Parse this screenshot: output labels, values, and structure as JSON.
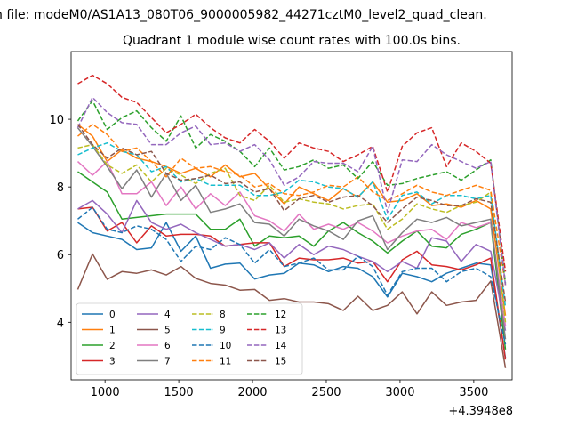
{
  "figure": {
    "suptitle": "n file: modeM0/AS1A13_080T06_9000005982_44271cztM0_level2_quad_clean.",
    "title": "Quadrant 1 module wise count rates with 100.0s bins.",
    "offset_label": "+4.3948e8"
  },
  "chart_data": {
    "type": "line",
    "title": "Quadrant 1 module wise count rates with 100.0s bins.",
    "xlabel": "",
    "ylabel": "",
    "x_offset": 439480000,
    "xlim": [
      770,
      3760
    ],
    "ylim": [
      2.3,
      12.0
    ],
    "xticks": [
      1000,
      1500,
      2000,
      2500,
      3000,
      3500
    ],
    "yticks": [
      4,
      6,
      8,
      10
    ],
    "grid": false,
    "legend_placement": "lower-left",
    "legend_columns": 4,
    "x": [
      815,
      915,
      1015,
      1115,
      1215,
      1315,
      1415,
      1515,
      1615,
      1715,
      1815,
      1915,
      2015,
      2115,
      2215,
      2315,
      2415,
      2515,
      2615,
      2715,
      2815,
      2915,
      3015,
      3115,
      3215,
      3315,
      3415,
      3515,
      3615,
      3715
    ],
    "series": [
      {
        "name": "0",
        "color": "#1f77b4",
        "dash": "solid",
        "values": [
          6.95,
          6.65,
          6.55,
          6.45,
          6.15,
          6.2,
          6.95,
          6.1,
          6.55,
          5.6,
          5.72,
          5.75,
          5.28,
          5.4,
          5.45,
          5.75,
          5.7,
          5.5,
          5.65,
          5.6,
          5.35,
          4.75,
          5.45,
          5.35,
          5.2,
          5.45,
          5.6,
          5.75,
          5.7,
          2.95
        ]
      },
      {
        "name": "1",
        "color": "#ff7f0e",
        "dash": "solid",
        "values": [
          9.85,
          9.5,
          8.75,
          9.1,
          8.85,
          8.75,
          8.6,
          8.4,
          8.55,
          8.3,
          8.65,
          8.3,
          8.4,
          7.95,
          7.5,
          8.0,
          7.8,
          7.6,
          7.95,
          7.7,
          8.15,
          7.55,
          7.6,
          7.8,
          7.45,
          7.5,
          7.4,
          7.6,
          7.35,
          4.2
        ]
      },
      {
        "name": "2",
        "color": "#2ca02c",
        "dash": "solid",
        "values": [
          8.45,
          8.15,
          7.85,
          7.05,
          7.1,
          7.15,
          7.2,
          7.2,
          7.2,
          6.75,
          6.75,
          7.05,
          6.25,
          6.55,
          6.5,
          6.55,
          6.25,
          6.7,
          6.95,
          6.65,
          6.4,
          6.05,
          6.4,
          6.7,
          6.25,
          6.2,
          6.6,
          6.75,
          6.95,
          3.2
        ]
      },
      {
        "name": "3",
        "color": "#d62728",
        "dash": "solid",
        "values": [
          7.35,
          7.4,
          6.7,
          6.95,
          6.35,
          6.85,
          6.55,
          6.6,
          6.6,
          6.55,
          6.25,
          6.3,
          6.35,
          6.35,
          5.65,
          5.9,
          5.85,
          5.85,
          5.9,
          5.75,
          5.8,
          5.2,
          5.85,
          6.1,
          5.7,
          5.65,
          5.55,
          5.7,
          5.9,
          2.9
        ]
      },
      {
        "name": "4",
        "color": "#9467bd",
        "dash": "solid",
        "values": [
          7.35,
          7.6,
          7.2,
          6.65,
          7.6,
          6.95,
          6.75,
          6.9,
          6.65,
          6.45,
          6.25,
          6.3,
          6.15,
          6.35,
          5.9,
          6.3,
          6.0,
          6.25,
          6.15,
          5.95,
          5.8,
          5.5,
          5.8,
          5.6,
          6.5,
          6.4,
          5.8,
          6.3,
          6.1,
          3.75
        ]
      },
      {
        "name": "5",
        "color": "#8c564b",
        "dash": "solid",
        "values": [
          4.97,
          6.02,
          5.27,
          5.5,
          5.45,
          5.55,
          5.4,
          5.65,
          5.3,
          5.15,
          5.1,
          4.95,
          4.97,
          4.65,
          4.7,
          4.6,
          4.6,
          4.55,
          4.35,
          4.77,
          4.35,
          4.5,
          4.9,
          4.25,
          4.9,
          4.5,
          4.6,
          4.65,
          5.22,
          2.65
        ]
      },
      {
        "name": "6",
        "color": "#e377c2",
        "dash": "solid",
        "values": [
          8.75,
          8.35,
          8.75,
          7.8,
          7.8,
          8.15,
          7.45,
          8.0,
          7.35,
          7.8,
          7.45,
          7.85,
          7.15,
          7.0,
          6.7,
          7.2,
          6.75,
          6.9,
          6.75,
          6.95,
          6.7,
          6.35,
          6.55,
          6.7,
          6.75,
          6.45,
          6.95,
          6.8,
          6.95,
          3.9
        ]
      },
      {
        "name": "7",
        "color": "#7f7f7f",
        "dash": "solid",
        "values": [
          9.75,
          9.2,
          8.6,
          7.95,
          8.5,
          7.7,
          8.4,
          7.6,
          8.05,
          7.25,
          7.35,
          7.5,
          6.95,
          6.9,
          6.55,
          7.05,
          6.85,
          6.7,
          6.45,
          7.0,
          7.15,
          6.15,
          6.65,
          7.05,
          6.95,
          7.1,
          6.85,
          6.95,
          7.05,
          3.5
        ]
      },
      {
        "name": "8",
        "color": "#bcbd22",
        "dash": "dashed",
        "values": [
          9.15,
          9.25,
          8.65,
          8.4,
          8.65,
          8.15,
          8.55,
          8.35,
          8.1,
          8.4,
          8.55,
          7.75,
          7.6,
          8.05,
          7.55,
          7.65,
          7.55,
          7.5,
          7.35,
          7.45,
          7.5,
          6.75,
          7.05,
          7.5,
          7.35,
          7.25,
          7.45,
          7.55,
          7.85,
          4.0
        ]
      },
      {
        "name": "9",
        "color": "#17becf",
        "dash": "dashed",
        "values": [
          8.95,
          9.15,
          9.3,
          9.05,
          8.95,
          8.45,
          8.6,
          8.15,
          8.25,
          8.05,
          8.05,
          8.05,
          7.75,
          7.75,
          7.85,
          8.2,
          8.15,
          8.0,
          7.95,
          7.7,
          8.15,
          7.05,
          7.75,
          7.85,
          7.5,
          7.75,
          7.75,
          7.65,
          7.75,
          4.45
        ]
      },
      {
        "name": "10",
        "color": "#1f77b4",
        "dash": "dashed",
        "values": [
          7.05,
          7.4,
          6.75,
          6.65,
          6.85,
          6.75,
          6.45,
          5.8,
          6.25,
          6.15,
          6.5,
          6.3,
          5.75,
          6.15,
          5.65,
          5.75,
          5.9,
          5.55,
          5.55,
          5.95,
          5.65,
          4.8,
          5.5,
          5.6,
          5.6,
          5.2,
          5.5,
          5.6,
          5.35,
          3.35
        ]
      },
      {
        "name": "11",
        "color": "#ff7f0e",
        "dash": "dashed",
        "values": [
          9.5,
          9.85,
          9.55,
          9.05,
          9.15,
          8.75,
          8.3,
          8.85,
          8.55,
          8.6,
          8.45,
          8.35,
          8.0,
          8.1,
          7.8,
          7.75,
          7.85,
          8.05,
          8.0,
          8.3,
          7.85,
          7.6,
          7.8,
          8.05,
          7.85,
          7.75,
          7.9,
          8.05,
          7.9,
          5.1
        ]
      },
      {
        "name": "12",
        "color": "#2ca02c",
        "dash": "dashed",
        "values": [
          9.95,
          10.55,
          9.7,
          10.05,
          10.25,
          9.75,
          9.35,
          10.1,
          9.15,
          9.55,
          9.35,
          9.05,
          8.6,
          9.15,
          8.5,
          8.6,
          8.8,
          8.55,
          8.65,
          8.25,
          8.75,
          8.05,
          8.1,
          8.25,
          8.35,
          8.45,
          8.2,
          8.5,
          8.8,
          5.15
        ]
      },
      {
        "name": "13",
        "color": "#d62728",
        "dash": "dashed",
        "values": [
          11.05,
          11.3,
          11.05,
          10.65,
          10.5,
          10.05,
          9.6,
          9.85,
          10.15,
          9.75,
          9.45,
          9.3,
          9.7,
          9.35,
          8.85,
          9.3,
          9.15,
          9.05,
          8.75,
          8.95,
          9.2,
          7.85,
          9.2,
          9.6,
          9.75,
          8.6,
          9.3,
          9.05,
          8.7,
          5.5
        ]
      },
      {
        "name": "14",
        "color": "#9467bd",
        "dash": "dashed",
        "values": [
          9.75,
          10.65,
          10.2,
          9.9,
          9.85,
          9.25,
          9.25,
          9.6,
          9.8,
          9.25,
          9.3,
          9.05,
          9.25,
          8.8,
          8.05,
          8.3,
          8.75,
          8.7,
          8.7,
          8.45,
          9.2,
          7.25,
          8.8,
          8.75,
          9.25,
          8.95,
          8.75,
          8.55,
          8.75,
          5.1
        ]
      },
      {
        "name": "15",
        "color": "#8c564b",
        "dash": "dashed",
        "values": [
          9.85,
          9.25,
          8.85,
          9.15,
          8.95,
          9.05,
          8.4,
          8.2,
          8.25,
          8.35,
          8.1,
          8.15,
          7.85,
          7.95,
          7.3,
          7.65,
          7.75,
          7.55,
          7.7,
          7.75,
          7.45,
          6.95,
          7.35,
          7.7,
          7.6,
          7.45,
          7.45,
          7.65,
          7.55,
          4.6
        ]
      }
    ]
  }
}
